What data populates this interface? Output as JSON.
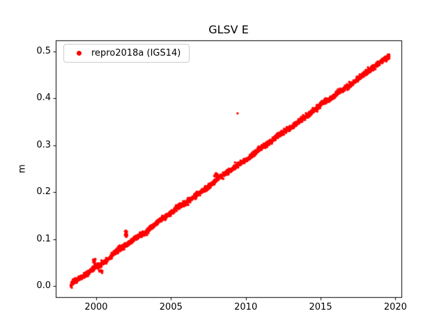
{
  "chart_data": {
    "type": "scatter",
    "title": "GLSV E",
    "xlabel": "",
    "ylabel": "m",
    "legend": {
      "label": "repro2018a (IGS14)",
      "location": "upper left"
    },
    "marker": {
      "color": "#ff0000",
      "shape": "dot",
      "radius_px": 1.7
    },
    "axes": {
      "xlim": [
        1997.3,
        2020.4
      ],
      "ylim": [
        -0.0235,
        0.5235
      ],
      "xticks": [
        2000,
        2005,
        2010,
        2015,
        2020
      ],
      "yticks": [
        0.0,
        0.1,
        0.2,
        0.3,
        0.4,
        0.5
      ],
      "ytick_decimals": 1,
      "grid": false,
      "frame_color": "#000000"
    },
    "series": [
      {
        "name": "repro2018a (IGS14)",
        "description": "dense linear scatter of daily position estimates",
        "trend": {
          "x_start": 1998.3,
          "x_end": 2019.6,
          "y_start": 0.002,
          "y_end": 0.49,
          "n_points": 2600,
          "noise_sigma": 0.0028,
          "seed": 42
        },
        "outliers": [
          [
            2009.45,
            0.368
          ]
        ],
        "clusters": [
          {
            "x_start": 1999.78,
            "x_end": 1999.95,
            "y_center": 0.053,
            "spread": 0.003,
            "n": 14
          },
          {
            "x_start": 2000.18,
            "x_end": 2000.42,
            "y_center": 0.032,
            "spread": 0.002,
            "n": 12
          },
          {
            "x_start": 2001.92,
            "x_end": 2002.12,
            "y_center": 0.112,
            "spread": 0.003,
            "n": 16
          },
          {
            "x_start": 2007.9,
            "x_end": 2008.15,
            "y_center": 0.237,
            "spread": 0.003,
            "n": 14
          }
        ]
      }
    ]
  }
}
